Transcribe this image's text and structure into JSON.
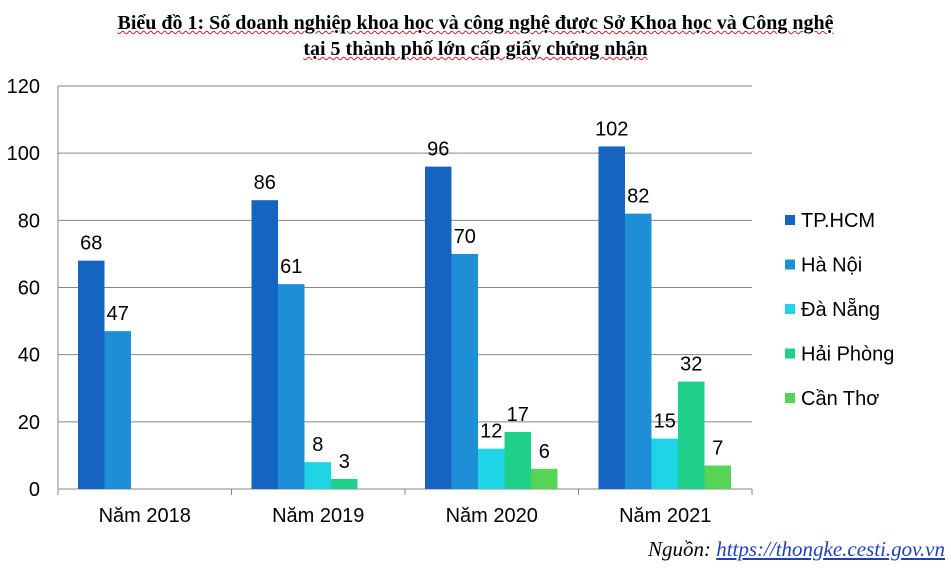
{
  "chart_data": {
    "type": "bar",
    "title_line1": "Biểu đồ 1: Số doanh nghiệp khoa học và công nghệ được Sở Khoa học và Công nghệ",
    "title_line2": "tại 5 thành phố lớn cấp giấy chứng nhận",
    "categories": [
      "Năm 2018",
      "Năm 2019",
      "Năm 2020",
      "Năm 2021"
    ],
    "series": [
      {
        "name": "TP.HCM",
        "color": "#1565c0",
        "values": [
          68,
          86,
          96,
          102
        ]
      },
      {
        "name": "Hà Nội",
        "color": "#1e8fd6",
        "values": [
          47,
          61,
          70,
          82
        ]
      },
      {
        "name": "Đà Nẵng",
        "color": "#1ed4e6",
        "values": [
          null,
          8,
          12,
          15
        ]
      },
      {
        "name": "Hải Phòng",
        "color": "#1fd08a",
        "values": [
          null,
          3,
          17,
          32
        ]
      },
      {
        "name": "Cần Thơ",
        "color": "#55d455",
        "values": [
          null,
          null,
          6,
          7
        ]
      }
    ],
    "yticks": [
      "0",
      "20",
      "40",
      "60",
      "80",
      "100",
      "120"
    ],
    "ylim": [
      0,
      120
    ],
    "grid": true,
    "legend_position": "right"
  },
  "source": {
    "label": "Nguồn:",
    "url": "https://thongke.cesti.gov.vn"
  }
}
